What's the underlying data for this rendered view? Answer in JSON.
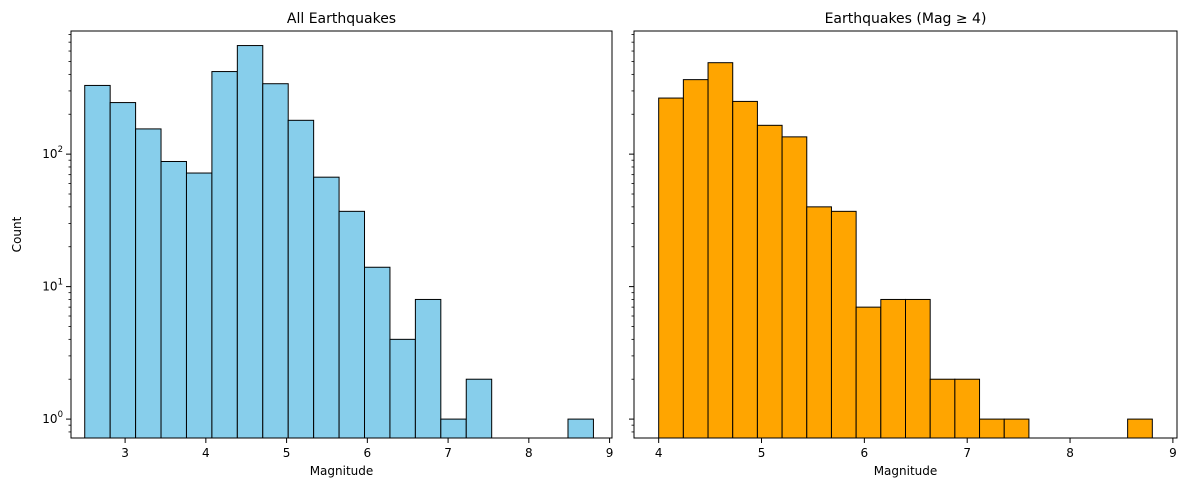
{
  "chart_data": [
    {
      "type": "bar",
      "subtype": "histogram",
      "title": "All Earthquakes",
      "xlabel": "Magnitude",
      "ylabel": "Count",
      "yscale": "log",
      "xlim": [
        2.33,
        9.03
      ],
      "ylim": [
        0.72,
        850
      ],
      "x_ticks": [
        3,
        4,
        5,
        6,
        7,
        8,
        9
      ],
      "y_ticks": [
        {
          "base": "10",
          "exp": "0",
          "value": 1
        },
        {
          "base": "10",
          "exp": "1",
          "value": 10
        },
        {
          "base": "10",
          "exp": "2",
          "value": 100
        }
      ],
      "bar_color": "#87ceeb",
      "edge_color": "#000000",
      "bin_edges": [
        2.5,
        2.815,
        3.13,
        3.445,
        3.76,
        4.075,
        4.39,
        4.705,
        5.02,
        5.335,
        5.65,
        5.965,
        6.28,
        6.595,
        6.91,
        7.225,
        7.54,
        7.855,
        8.17,
        8.485,
        8.8
      ],
      "values": [
        330,
        245,
        155,
        88,
        72,
        420,
        660,
        340,
        180,
        67,
        37,
        14,
        4,
        8,
        1,
        2,
        0,
        0,
        0,
        1
      ],
      "grid": false
    },
    {
      "type": "bar",
      "subtype": "histogram",
      "title": "Earthquakes (Mag ≥ 4)",
      "xlabel": "Magnitude",
      "ylabel": "",
      "yscale": "log",
      "sharey": true,
      "xlim": [
        3.76,
        9.04
      ],
      "ylim": [
        0.72,
        850
      ],
      "x_ticks": [
        4,
        5,
        6,
        7,
        8,
        9
      ],
      "bar_color": "#ffa500",
      "edge_color": "#000000",
      "bin_edges": [
        4.0,
        4.24,
        4.48,
        4.72,
        4.96,
        5.2,
        5.44,
        5.68,
        5.92,
        6.16,
        6.4,
        6.64,
        6.88,
        7.12,
        7.36,
        7.6,
        7.84,
        8.08,
        8.32,
        8.56,
        8.8
      ],
      "values": [
        265,
        365,
        490,
        250,
        165,
        135,
        40,
        37,
        7,
        8,
        8,
        2,
        2,
        1,
        1,
        0,
        0,
        0,
        0,
        1
      ],
      "grid": false
    }
  ]
}
